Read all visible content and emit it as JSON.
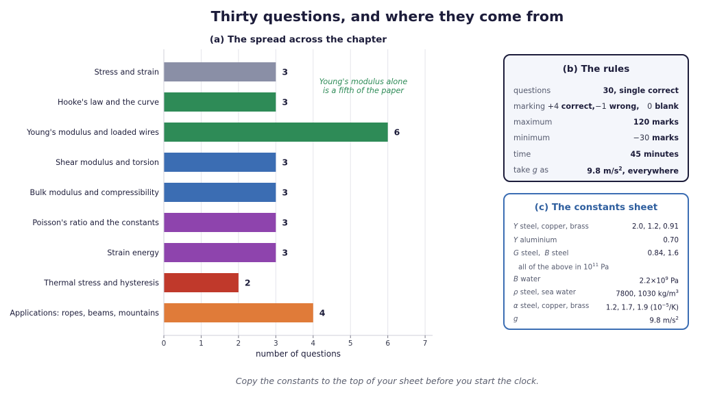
{
  "title": "Thirty questions, and where they come from",
  "chart_data": {
    "type": "bar",
    "orientation": "horizontal",
    "title": "(a) The spread across the chapter",
    "xlabel": "number of questions",
    "xlim": [
      0,
      7.2
    ],
    "xticks": [
      0,
      1,
      2,
      3,
      4,
      5,
      6,
      7
    ],
    "grid": "vertical",
    "categories": [
      "Stress and strain",
      "Hooke's law and the curve",
      "Young's modulus and loaded wires",
      "Shear modulus and torsion",
      "Bulk modulus and compressibility",
      "Poisson's ratio and the constants",
      "Strain energy",
      "Thermal stress and hysteresis",
      "Applications: ropes, beams, mountains"
    ],
    "values": [
      3,
      3,
      6,
      3,
      3,
      3,
      3,
      2,
      4
    ],
    "colors": [
      "#8a8fa6",
      "#2e8b57",
      "#2e8b57",
      "#3b6db3",
      "#3b6db3",
      "#8e44ad",
      "#8e44ad",
      "#c0392b",
      "#e07b39"
    ],
    "annotation": {
      "lines": [
        "Young's modulus alone",
        "is a fifth of the paper"
      ],
      "color": "#2e8b57"
    }
  },
  "rules": {
    "title": "(b) The rules",
    "rows": [
      {
        "label": "questions",
        "value": "30, single correct"
      },
      {
        "label": "marking",
        "value_parts": [
          "+4",
          "correct,",
          "−1",
          "wrong,",
          "0",
          "blank"
        ]
      },
      {
        "label": "maximum",
        "value": "120 marks"
      },
      {
        "label": "minimum",
        "value_parts": [
          "−30",
          "marks"
        ]
      },
      {
        "label": "time",
        "value": "45 minutes"
      },
      {
        "label_parts": [
          "take",
          "g",
          "as"
        ],
        "value_parts": [
          "9.8 m/s",
          "2",
          ", everywhere"
        ]
      }
    ]
  },
  "constants": {
    "title": "(c) The constants sheet",
    "rows": [
      {
        "sym": "Y",
        "label": "steel, copper, brass",
        "value": "2.0,  1.2,  0.91"
      },
      {
        "sym": "Y",
        "label": "aluminium",
        "value": "0.70"
      },
      {
        "sym": "G",
        "label": "steel,",
        "sym2": "B",
        "label2": "steel",
        "value": "0.84,   1.6"
      },
      {
        "sym": "ρ",
        "label": "steel,  sea water",
        "value": "7800,  1030 kg/m",
        "value_sup": "3"
      },
      {
        "sym": "α",
        "label": "steel, copper, brass",
        "value": "1.2, 1.7, 1.9 (10",
        "value_sup": "−5",
        "value_tail": "/K)"
      },
      {
        "sym": "g",
        "label": "",
        "value": "9.8 m/s",
        "value_sup": "2"
      }
    ],
    "note": {
      "text": "all of the above in 10",
      "sup": "11",
      "tail": " Pa"
    },
    "b_water": {
      "sym": "B",
      "label": "water",
      "value": "2.2×10",
      "value_sup": "9",
      "value_tail": " Pa"
    }
  },
  "footer": "Copy the constants to the top of your sheet before you start the clock."
}
